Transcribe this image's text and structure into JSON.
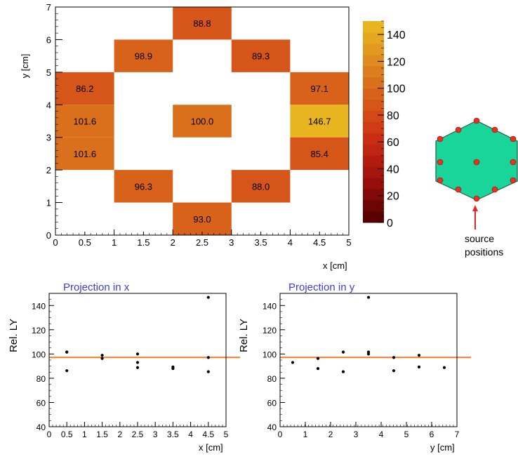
{
  "chart_data": [
    {
      "type": "heatmap",
      "xlabel": "x [cm]",
      "ylabel": "y [cm]",
      "xlim": [
        0,
        5
      ],
      "ylim": [
        0,
        7
      ],
      "x_ticks": [
        "0",
        "0.5",
        "1",
        "1.5",
        "2",
        "2.5",
        "3",
        "3.5",
        "4",
        "4.5",
        "5"
      ],
      "y_ticks": [
        "0",
        "1",
        "2",
        "3",
        "4",
        "5",
        "6",
        "7"
      ],
      "cells": [
        {
          "x0": 2,
          "x1": 3,
          "y0": 6,
          "y1": 7,
          "value": 88.8,
          "label": "88.8"
        },
        {
          "x0": 1,
          "x1": 2,
          "y0": 5,
          "y1": 6,
          "value": 98.9,
          "label": "98.9"
        },
        {
          "x0": 3,
          "x1": 4,
          "y0": 5,
          "y1": 6,
          "value": 89.3,
          "label": "89.3"
        },
        {
          "x0": 0,
          "x1": 1,
          "y0": 4,
          "y1": 5,
          "value": 86.2,
          "label": "86.2"
        },
        {
          "x0": 4,
          "x1": 5,
          "y0": 4,
          "y1": 5,
          "value": 97.1,
          "label": "97.1"
        },
        {
          "x0": 0,
          "x1": 1,
          "y0": 3,
          "y1": 4,
          "value": 101.6,
          "label": "101.6"
        },
        {
          "x0": 2,
          "x1": 3,
          "y0": 3,
          "y1": 4,
          "value": 100.0,
          "label": "100.0"
        },
        {
          "x0": 4,
          "x1": 5,
          "y0": 3,
          "y1": 4,
          "value": 146.7,
          "label": "146.7"
        },
        {
          "x0": 0,
          "x1": 1,
          "y0": 2,
          "y1": 3,
          "value": 101.6,
          "label": "101.6"
        },
        {
          "x0": 4,
          "x1": 5,
          "y0": 2,
          "y1": 3,
          "value": 85.4,
          "label": "85.4"
        },
        {
          "x0": 1,
          "x1": 2,
          "y0": 1,
          "y1": 2,
          "value": 96.3,
          "label": "96.3"
        },
        {
          "x0": 3,
          "x1": 4,
          "y0": 1,
          "y1": 2,
          "value": 88.0,
          "label": "88.0"
        },
        {
          "x0": 2,
          "x1": 3,
          "y0": 0,
          "y1": 1,
          "value": 93.0,
          "label": "93.0"
        }
      ],
      "colorbar": {
        "range": [
          0,
          150
        ],
        "ticks": [
          "0",
          "20",
          "40",
          "60",
          "80",
          "100",
          "120",
          "140"
        ],
        "colors": [
          "#5a0000",
          "#6e0505",
          "#820a08",
          "#950e0a",
          "#a5140d",
          "#b31b10",
          "#c02512",
          "#c92e13",
          "#d03a14",
          "#d44716",
          "#d65518",
          "#d8621a",
          "#da6f1c",
          "#dc7d1e",
          "#df8b1f",
          "#e2991f",
          "#e5a720",
          "#e8b520"
        ]
      }
    },
    {
      "type": "scatter",
      "title": "Projection in x",
      "xlabel": "x [cm]",
      "ylabel": "Rel. LY",
      "xlim": [
        0,
        5
      ],
      "ylim": [
        40,
        150
      ],
      "x_ticks": [
        "0",
        "0.5",
        "1",
        "1.5",
        "2",
        "2.5",
        "3",
        "3.5",
        "4",
        "4.5",
        "5"
      ],
      "y_ticks": [
        "40",
        "60",
        "80",
        "100",
        "120",
        "140"
      ],
      "points": [
        {
          "x": 0.5,
          "y": 101.6
        },
        {
          "x": 0.5,
          "y": 101.6
        },
        {
          "x": 0.5,
          "y": 86.2
        },
        {
          "x": 1.5,
          "y": 98.9
        },
        {
          "x": 1.5,
          "y": 96.3
        },
        {
          "x": 2.5,
          "y": 100.0
        },
        {
          "x": 2.5,
          "y": 93.0
        },
        {
          "x": 2.5,
          "y": 88.8
        },
        {
          "x": 3.5,
          "y": 89.3
        },
        {
          "x": 3.5,
          "y": 88.0
        },
        {
          "x": 4.5,
          "y": 146.7
        },
        {
          "x": 4.5,
          "y": 97.1
        },
        {
          "x": 4.5,
          "y": 85.4
        }
      ],
      "fit_line": {
        "y": 97.2,
        "color": "#f07a28"
      }
    },
    {
      "type": "scatter",
      "title": "Projection in y",
      "xlabel": "y [cm]",
      "ylabel": "Rel. LY",
      "xlim": [
        0,
        7
      ],
      "ylim": [
        40,
        150
      ],
      "x_ticks": [
        "0",
        "1",
        "2",
        "3",
        "4",
        "5",
        "6",
        "7"
      ],
      "y_ticks": [
        "40",
        "60",
        "80",
        "100",
        "120",
        "140"
      ],
      "points": [
        {
          "x": 0.5,
          "y": 93.0
        },
        {
          "x": 1.5,
          "y": 96.3
        },
        {
          "x": 1.5,
          "y": 88.0
        },
        {
          "x": 2.5,
          "y": 101.6
        },
        {
          "x": 2.5,
          "y": 85.4
        },
        {
          "x": 3.5,
          "y": 146.7
        },
        {
          "x": 3.5,
          "y": 101.6
        },
        {
          "x": 3.5,
          "y": 100.0
        },
        {
          "x": 4.5,
          "y": 97.1
        },
        {
          "x": 4.5,
          "y": 86.2
        },
        {
          "x": 5.5,
          "y": 98.9
        },
        {
          "x": 5.5,
          "y": 89.3
        },
        {
          "x": 6.5,
          "y": 88.8
        }
      ],
      "fit_line": {
        "y": 97.2,
        "color": "#f07a28"
      }
    }
  ],
  "diagram": {
    "label_line1": "source",
    "label_line2": "positions",
    "hex_color": "#19d59a",
    "dot_color": "#e8321e",
    "arrow_color": "#e8262a"
  },
  "colors": {
    "axis": "#000000",
    "title": "#3c3cdc"
  }
}
